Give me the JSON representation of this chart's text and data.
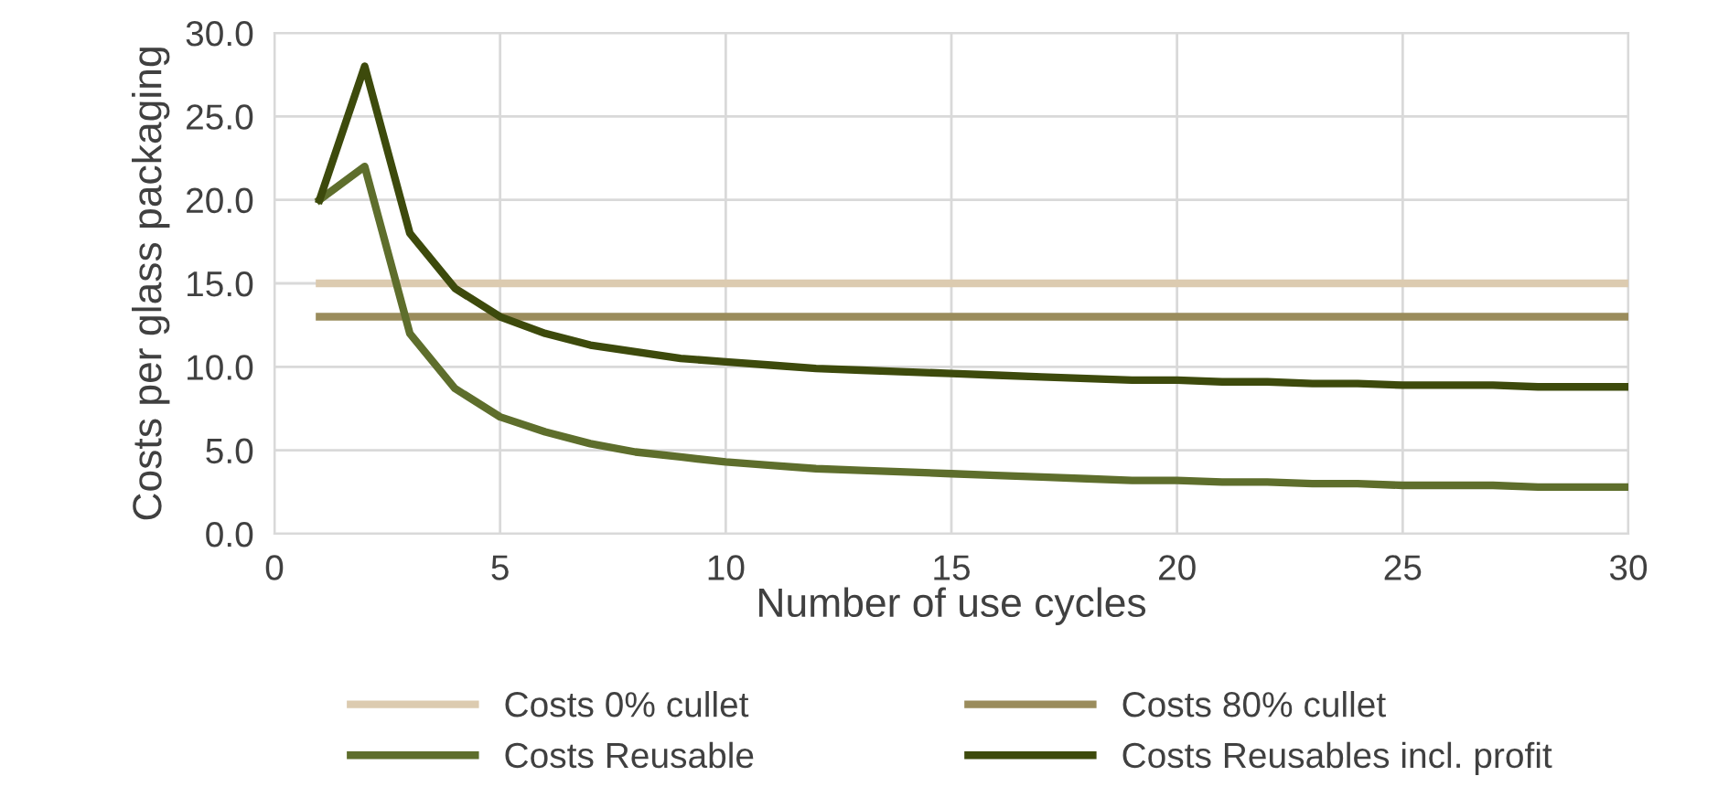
{
  "chart_data": {
    "type": "line",
    "xlabel": "Number of use cycles",
    "ylabel": "Costs per glass packaging",
    "x": [
      1,
      2,
      3,
      4,
      5,
      6,
      7,
      8,
      9,
      10,
      11,
      12,
      13,
      14,
      15,
      16,
      17,
      18,
      19,
      20,
      21,
      22,
      23,
      24,
      25,
      26,
      27,
      28,
      29,
      30
    ],
    "series": [
      {
        "name": "Costs 0% cullet",
        "color": "#dccbb0",
        "values": [
          15,
          15,
          15,
          15,
          15,
          15,
          15,
          15,
          15,
          15,
          15,
          15,
          15,
          15,
          15,
          15,
          15,
          15,
          15,
          15,
          15,
          15,
          15,
          15,
          15,
          15,
          15,
          15,
          15,
          15
        ]
      },
      {
        "name": "Costs 80% cullet",
        "color": "#9a8c5c",
        "values": [
          13,
          13,
          13,
          13,
          13,
          13,
          13,
          13,
          13,
          13,
          13,
          13,
          13,
          13,
          13,
          13,
          13,
          13,
          13,
          13,
          13,
          13,
          13,
          13,
          13,
          13,
          13,
          13,
          13,
          13
        ]
      },
      {
        "name": "Costs Reusable",
        "color": "#5e6e2c",
        "values": [
          20,
          22,
          12,
          8.7,
          7.0,
          6.1,
          5.4,
          4.9,
          4.6,
          4.3,
          4.1,
          3.9,
          3.8,
          3.7,
          3.6,
          3.5,
          3.4,
          3.3,
          3.2,
          3.2,
          3.1,
          3.1,
          3.0,
          3.0,
          2.9,
          2.9,
          2.9,
          2.8,
          2.8,
          2.8
        ]
      },
      {
        "name": "Costs Reusables incl. profit",
        "color": "#3d4a0c",
        "values": [
          20,
          28,
          18,
          14.7,
          13.0,
          12.0,
          11.3,
          10.9,
          10.5,
          10.3,
          10.1,
          9.9,
          9.8,
          9.7,
          9.6,
          9.5,
          9.4,
          9.3,
          9.2,
          9.2,
          9.1,
          9.1,
          9.0,
          9.0,
          8.9,
          8.9,
          8.9,
          8.8,
          8.8,
          8.8
        ]
      }
    ],
    "xlim": [
      0,
      30
    ],
    "xticks": [
      0,
      5,
      10,
      15,
      20,
      25,
      30
    ],
    "ylim": [
      0,
      30
    ],
    "yticks": [
      {
        "value": 0,
        "label": "0.0"
      },
      {
        "value": 5,
        "label": "5.0"
      },
      {
        "value": 10,
        "label": "10.0"
      },
      {
        "value": 15,
        "label": "15.0"
      },
      {
        "value": 20,
        "label": "20.0"
      },
      {
        "value": 25,
        "label": "25.0"
      },
      {
        "value": 30,
        "label": "30.0"
      }
    ],
    "grid": true,
    "legend": "bottom",
    "marker": "none",
    "line_style": "solid"
  }
}
